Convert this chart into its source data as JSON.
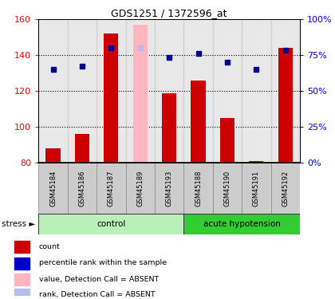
{
  "title": "GDS1251 / 1372596_at",
  "samples": [
    "GSM45184",
    "GSM45186",
    "GSM45187",
    "GSM45189",
    "GSM45193",
    "GSM45188",
    "GSM45190",
    "GSM45191",
    "GSM45192"
  ],
  "bar_values": [
    88,
    96,
    152,
    80,
    119,
    126,
    105,
    81,
    144
  ],
  "absent_bar_index": 3,
  "absent_bar_value": 157,
  "rank_values": [
    132,
    134,
    144,
    144,
    139,
    141,
    136,
    132,
    143
  ],
  "rank_absent_index": 3,
  "ylim_left": [
    80,
    160
  ],
  "ylim_right": [
    0,
    100
  ],
  "yticks_left": [
    80,
    100,
    120,
    140,
    160
  ],
  "yticks_right": [
    0,
    25,
    50,
    75,
    100
  ],
  "ytick_labels_right": [
    "0%",
    "25%",
    "50%",
    "75%",
    "100%"
  ],
  "control_indices": [
    0,
    1,
    2,
    3,
    4
  ],
  "acute_indices": [
    5,
    6,
    7,
    8
  ],
  "control_label": "control",
  "acute_label": "acute hypotension",
  "stress_label": "stress",
  "sample_bg": "#cccccc",
  "control_bg_light": "#b8f0b8",
  "control_bg_dark": "#50d050",
  "acute_bg": "#32cd32",
  "bar_color_present": "#cc0000",
  "bar_color_absent": "#ffb6c1",
  "rank_color_present": "#00008b",
  "rank_color_absent": "#b0c0e8",
  "legend_labels": [
    "count",
    "percentile rank within the sample",
    "value, Detection Call = ABSENT",
    "rank, Detection Call = ABSENT"
  ],
  "legend_colors": [
    "#cc0000",
    "#0000cd",
    "#ffb6c1",
    "#b0c0e8"
  ]
}
